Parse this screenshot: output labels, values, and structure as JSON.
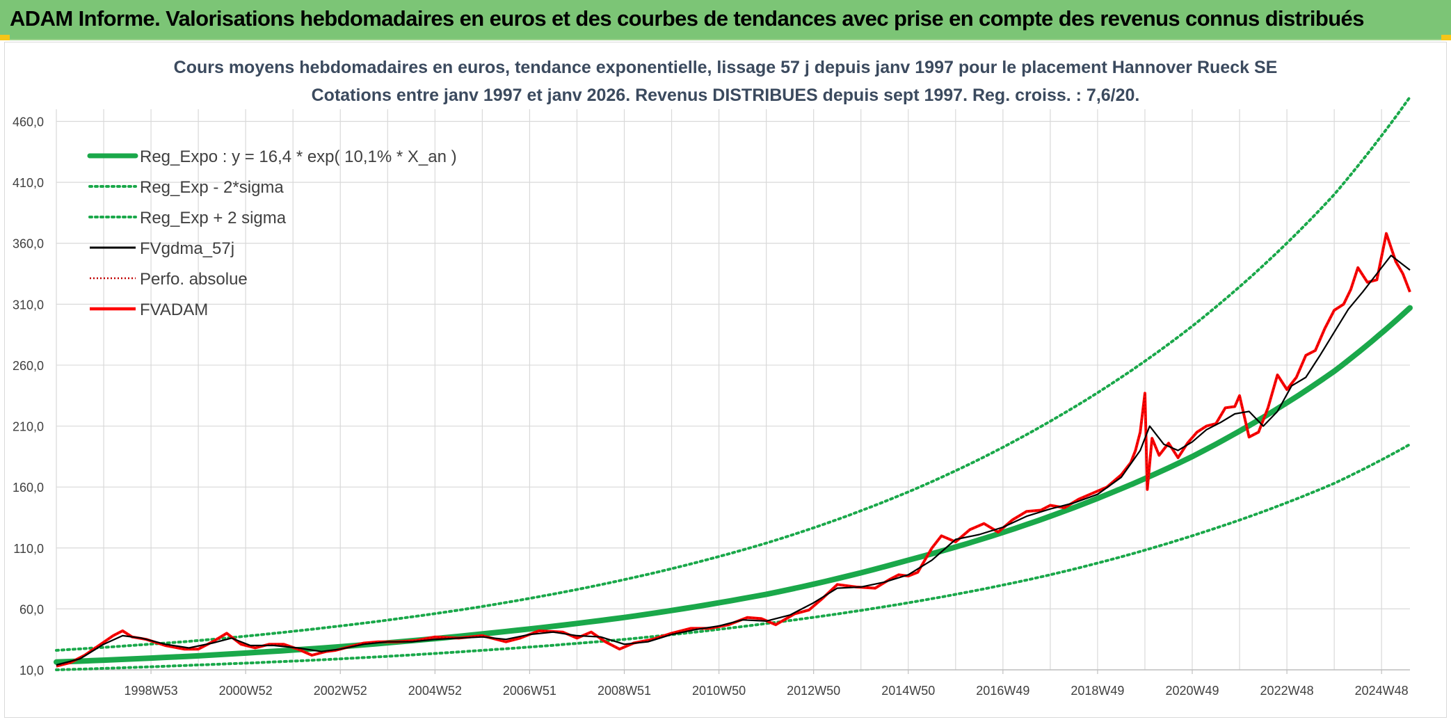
{
  "banner": {
    "title": "ADAM Informe. Valorisations hebdomadaires en euros et des courbes de tendances avec prise en compte des revenus connus distribués"
  },
  "colors": {
    "banner_bg": "#7cc576",
    "trend_green": "#1aa84a",
    "moving_avg": "#000000",
    "fvadam_red": "#ff0000",
    "perfo_red": "#c00000",
    "grid": "#d9d9d9"
  },
  "chart_data": {
    "type": "line",
    "title": [
      "Cours moyens hebdomadaires en euros, tendance exponentielle, lissage 57 j depuis janv 1997 pour le placement Hannover Rueck SE",
      "Cotations entre janv 1997 et janv 2026. Revenus DISTRIBUES depuis sept 1997. Reg. croiss. : 7,6/20."
    ],
    "xlabel": "",
    "ylabel": "",
    "xlim": [
      1997.0,
      2025.6
    ],
    "ylim": [
      10,
      470
    ],
    "grid": true,
    "y_ticks": [
      10,
      60,
      110,
      160,
      210,
      260,
      310,
      360,
      410,
      460
    ],
    "y_tick_labels": [
      "10,0",
      "60,0",
      "110,0",
      "160,0",
      "210,0",
      "260,0",
      "310,0",
      "360,0",
      "410,0",
      "460,0"
    ],
    "x_ticks": [
      1999.0,
      2001.0,
      2003.0,
      2005.0,
      2007.0,
      2009.0,
      2011.0,
      2013.0,
      2015.0,
      2017.0,
      2019.0,
      2021.0,
      2023.0,
      2025.0
    ],
    "x_tick_labels": [
      "1998W53",
      "2000W52",
      "2002W52",
      "2004W52",
      "2006W51",
      "2008W51",
      "2010W50",
      "2012W50",
      "2014W50",
      "2016W49",
      "2018W49",
      "2020W49",
      "2022W48",
      "2024W48"
    ],
    "x_gridlines": [
      1997.0,
      1998.0,
      1999.0,
      2000.0,
      2001.0,
      2002.0,
      2003.0,
      2004.0,
      2005.0,
      2006.0,
      2007.0,
      2008.0,
      2009.0,
      2010.0,
      2011.0,
      2012.0,
      2013.0,
      2014.0,
      2015.0,
      2016.0,
      2017.0,
      2018.0,
      2019.0,
      2020.0,
      2021.0,
      2022.0,
      2023.0,
      2024.0,
      2025.0
    ],
    "legend_position": "top-left",
    "legend": [
      {
        "key": "reg_expo",
        "label": "Reg_Expo : y = 16,4 * exp( 10,1% *  X_an )",
        "style": "solid-thick",
        "color": "#1aa84a"
      },
      {
        "key": "reg_lower",
        "label": "Reg_Exp - 2*sigma",
        "style": "dotted",
        "color": "#1aa84a"
      },
      {
        "key": "reg_upper",
        "label": "Reg_Exp + 2 sigma",
        "style": "dotted",
        "color": "#1aa84a"
      },
      {
        "key": "fvgdma",
        "label": "FVgdma_57j",
        "style": "solid-thin",
        "color": "#000000"
      },
      {
        "key": "perfo",
        "label": "Perfo. absolue",
        "style": "dotted-thin",
        "color": "#c00000"
      },
      {
        "key": "fvadam",
        "label": "FVADAM",
        "style": "solid",
        "color": "#ff0000"
      }
    ],
    "trend": {
      "formula": "y = 16,4 * exp( 10,1% * X_an )",
      "x": [
        1997.0,
        2000.0,
        2003.0,
        2006.0,
        2009.0,
        2012.0,
        2015.0,
        2018.0,
        2021.0,
        2024.0,
        2025.6
      ],
      "reg_expo": [
        16.4,
        21.5,
        29.0,
        39.5,
        53.0,
        72.0,
        100.0,
        136.0,
        185.0,
        255.0,
        307.0
      ],
      "reg_lower": [
        10.0,
        14.0,
        19.0,
        26.0,
        35.0,
        48.0,
        65.0,
        88.0,
        120.0,
        163.0,
        195.0
      ],
      "reg_upper": [
        26.0,
        34.0,
        46.0,
        62.0,
        84.0,
        114.0,
        156.0,
        214.0,
        292.0,
        400.0,
        480.0
      ]
    },
    "series": [
      {
        "name": "FVADAM",
        "x": [
          1997.0,
          1997.3,
          1997.6,
          1997.9,
          1998.2,
          1998.4,
          1998.6,
          1998.9,
          1999.3,
          1999.7,
          2000.0,
          2000.3,
          2000.6,
          2000.9,
          2001.2,
          2001.5,
          2001.8,
          2002.1,
          2002.4,
          2002.7,
          2002.9,
          2003.2,
          2003.5,
          2003.8,
          2004.2,
          2004.6,
          2005.0,
          2005.5,
          2006.0,
          2006.5,
          2006.8,
          2007.2,
          2007.7,
          2008.0,
          2008.3,
          2008.6,
          2008.9,
          2009.2,
          2009.6,
          2010.0,
          2010.4,
          2010.8,
          2011.2,
          2011.6,
          2011.9,
          2012.2,
          2012.6,
          2012.9,
          2013.2,
          2013.5,
          2013.9,
          2014.3,
          2014.6,
          2014.8,
          2015.0,
          2015.2,
          2015.5,
          2015.7,
          2016.0,
          2016.3,
          2016.6,
          2016.9,
          2017.2,
          2017.5,
          2017.8,
          2018.0,
          2018.3,
          2018.6,
          2018.9,
          2019.2,
          2019.5,
          2019.7,
          2019.8,
          2019.9,
          2020.0,
          2020.05,
          2020.15,
          2020.3,
          2020.5,
          2020.7,
          2020.9,
          2021.1,
          2021.3,
          2021.5,
          2021.7,
          2021.9,
          2022.0,
          2022.2,
          2022.4,
          2022.6,
          2022.8,
          2023.0,
          2023.2,
          2023.4,
          2023.6,
          2023.8,
          2024.0,
          2024.2,
          2024.35,
          2024.5,
          2024.7,
          2024.9,
          2025.1,
          2025.3,
          2025.45,
          2025.6
        ],
        "y": [
          13.0,
          16.0,
          22.0,
          30.0,
          38.0,
          42.0,
          37.0,
          35.0,
          30.0,
          27.0,
          27.0,
          33.0,
          40.0,
          31.0,
          28.0,
          31.0,
          31.0,
          27.0,
          22.0,
          25.0,
          26.0,
          29.0,
          32.0,
          33.0,
          33.0,
          34.0,
          37.0,
          36.0,
          38.0,
          33.0,
          36.0,
          42.0,
          41.0,
          36.0,
          41.0,
          33.0,
          27.0,
          32.0,
          35.0,
          40.0,
          44.0,
          44.0,
          47.0,
          53.0,
          52.0,
          47.0,
          56.0,
          59.0,
          69.0,
          80.0,
          78.0,
          77.0,
          84.0,
          88.0,
          87.0,
          90.0,
          110.0,
          120.0,
          115.0,
          125.0,
          130.0,
          123.0,
          133.0,
          140.0,
          141.0,
          145.0,
          143.0,
          150.0,
          155.0,
          160.0,
          170.0,
          180.0,
          190.0,
          205.0,
          237.0,
          158.0,
          200.0,
          186.0,
          196.0,
          184.0,
          196.0,
          205.0,
          210.0,
          212.0,
          225.0,
          226.0,
          235.0,
          201.0,
          205.0,
          225.0,
          252.0,
          240.0,
          250.0,
          268.0,
          272.0,
          290.0,
          305.0,
          310.0,
          322.0,
          340.0,
          328.0,
          330.0,
          368.0,
          345.0,
          335.0,
          320.0
        ]
      },
      {
        "name": "FVgdma_57j",
        "x": [
          1997.0,
          1997.5,
          1998.0,
          1998.4,
          1998.8,
          1999.3,
          1999.8,
          2000.3,
          2000.7,
          2001.1,
          2001.6,
          2002.1,
          2002.6,
          2003.0,
          2003.5,
          2004.0,
          2004.5,
          2005.0,
          2005.5,
          2006.0,
          2006.5,
          2007.0,
          2007.5,
          2008.0,
          2008.5,
          2009.0,
          2009.5,
          2010.0,
          2010.5,
          2011.0,
          2011.5,
          2012.0,
          2012.5,
          2013.0,
          2013.5,
          2014.0,
          2014.5,
          2015.0,
          2015.5,
          2016.0,
          2016.5,
          2017.0,
          2017.5,
          2018.0,
          2018.5,
          2019.0,
          2019.5,
          2019.9,
          2020.1,
          2020.4,
          2020.7,
          2021.0,
          2021.3,
          2021.6,
          2021.9,
          2022.2,
          2022.5,
          2022.8,
          2023.1,
          2023.4,
          2023.7,
          2024.0,
          2024.3,
          2024.6,
          2024.9,
          2025.2,
          2025.6
        ],
        "y": [
          14.0,
          19.0,
          31.0,
          38.0,
          36.0,
          31.0,
          28.0,
          32.0,
          36.0,
          30.0,
          30.0,
          28.0,
          25.0,
          27.0,
          31.0,
          33.0,
          33.0,
          35.0,
          36.0,
          37.0,
          35.0,
          39.0,
          41.0,
          38.0,
          37.0,
          31.0,
          33.0,
          39.0,
          43.0,
          46.0,
          51.0,
          50.0,
          55.0,
          65.0,
          77.0,
          78.0,
          82.0,
          88.0,
          100.0,
          117.0,
          121.0,
          127.0,
          136.0,
          142.0,
          147.0,
          154.0,
          168.0,
          190.0,
          210.0,
          195.0,
          190.0,
          197.0,
          207.0,
          213.0,
          220.0,
          222.0,
          210.0,
          222.0,
          243.0,
          250.0,
          268.0,
          287.0,
          306.0,
          320.0,
          335.0,
          350.0,
          338.0
        ]
      }
    ]
  }
}
